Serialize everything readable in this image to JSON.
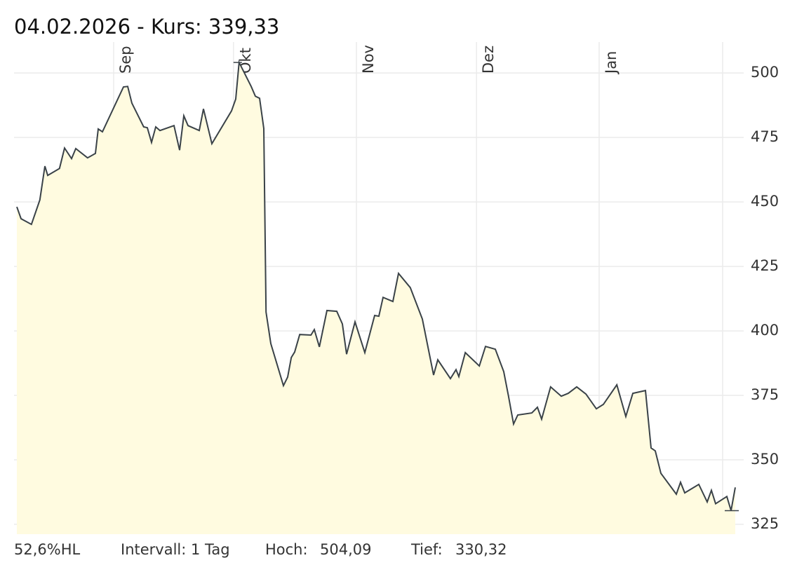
{
  "chart_data": {
    "type": "area",
    "title": "04.02.2026  -  Kurs: 339,33",
    "x": [
      0,
      0.75,
      2.6,
      4.1,
      5,
      5.5,
      7.6,
      8.5,
      9.75,
      10.5,
      12.6,
      14,
      14.5,
      15.25,
      19,
      19.75,
      20.5,
      22.6,
      23.25,
      24,
      24.75,
      25.5,
      28,
      29,
      29.75,
      30.5,
      32.5,
      33.25,
      34.75,
      38.25,
      39,
      39.6,
      41.75,
      42.5,
      43.25,
      44,
      44.4,
      45.25,
      47.5,
      48.25,
      48.9,
      49.5,
      50.4,
      52.4,
      53,
      53.9,
      55.25,
      57,
      58,
      58.75,
      60.25,
      62,
      63.75,
      64.5,
      65.25,
      67,
      68,
      70.1,
      72.25,
      74.25,
      75,
      77.25,
      78.25,
      78.75,
      79.9,
      82.4,
      83.5,
      85.25,
      86.75,
      87.6,
      88.5,
      89.25,
      91.75,
      92.75,
      93.5,
      95.1,
      97,
      98.25,
      99.75,
      101.4,
      103.25,
      104.5,
      106.9,
      108.5,
      109.75,
      112,
      113,
      113.75,
      114.75,
      117.5,
      118.25,
      119,
      121.5,
      123,
      123.75,
      124.5,
      126.5,
      127.25,
      128
    ],
    "values": [
      448.1,
      443.5,
      441.3,
      450.8,
      463.9,
      460.3,
      463,
      470.9,
      466.8,
      470.7,
      467.1,
      468.8,
      478.3,
      477.2,
      494.6,
      494.8,
      488.3,
      479.1,
      478.8,
      473.1,
      479.1,
      477.7,
      479.6,
      470.1,
      483.4,
      479.6,
      477.7,
      486.1,
      472.6,
      485.3,
      489.9,
      504.09,
      494.8,
      491,
      490.2,
      478.5,
      407.3,
      395.1,
      378.8,
      382.1,
      389.7,
      391.8,
      398.6,
      398.4,
      400.5,
      393.8,
      407.9,
      407.6,
      402.7,
      391,
      403.5,
      391.6,
      406,
      405.7,
      413,
      411.4,
      422.3,
      416.8,
      404.6,
      382.9,
      388.8,
      381.5,
      385,
      382.3,
      391.6,
      386.4,
      394,
      392.9,
      384.2,
      374.7,
      363.9,
      367.4,
      368.2,
      370.4,
      365.8,
      378.3,
      374.7,
      375.8,
      378.3,
      375.5,
      369.8,
      371.5,
      379.1,
      366.8,
      375.8,
      376.9,
      354.6,
      353.5,
      344.8,
      336.7,
      341.3,
      337.2,
      340.5,
      333.7,
      338.2,
      333,
      335.8,
      330.32,
      339.33
    ],
    "color": "#3a4248",
    "fill": "#fffbe0",
    "xlim": [
      -0.5,
      129.5
    ],
    "xticks": [
      {
        "value": 17.25,
        "label": "Sep"
      },
      {
        "value": 38.6,
        "label": "Okt"
      },
      {
        "value": 60.5,
        "label": "Nov"
      },
      {
        "value": 81.9,
        "label": "Dez"
      },
      {
        "value": 103.75,
        "label": "Jan"
      },
      {
        "value": 125.75,
        "label": null
      }
    ],
    "ylim": [
      321.2,
      512
    ],
    "yticks": [
      325,
      350,
      375,
      400,
      425,
      450,
      475,
      500
    ],
    "grid": true,
    "high": {
      "value": 504.09,
      "label": "504,09"
    },
    "low": {
      "value": 330.32,
      "label": "330,32"
    },
    "footer": {
      "range": "52,6%HL",
      "interval": "Intervall: 1 Tag",
      "high_label": "Hoch:",
      "low_label": "Tief:"
    }
  }
}
